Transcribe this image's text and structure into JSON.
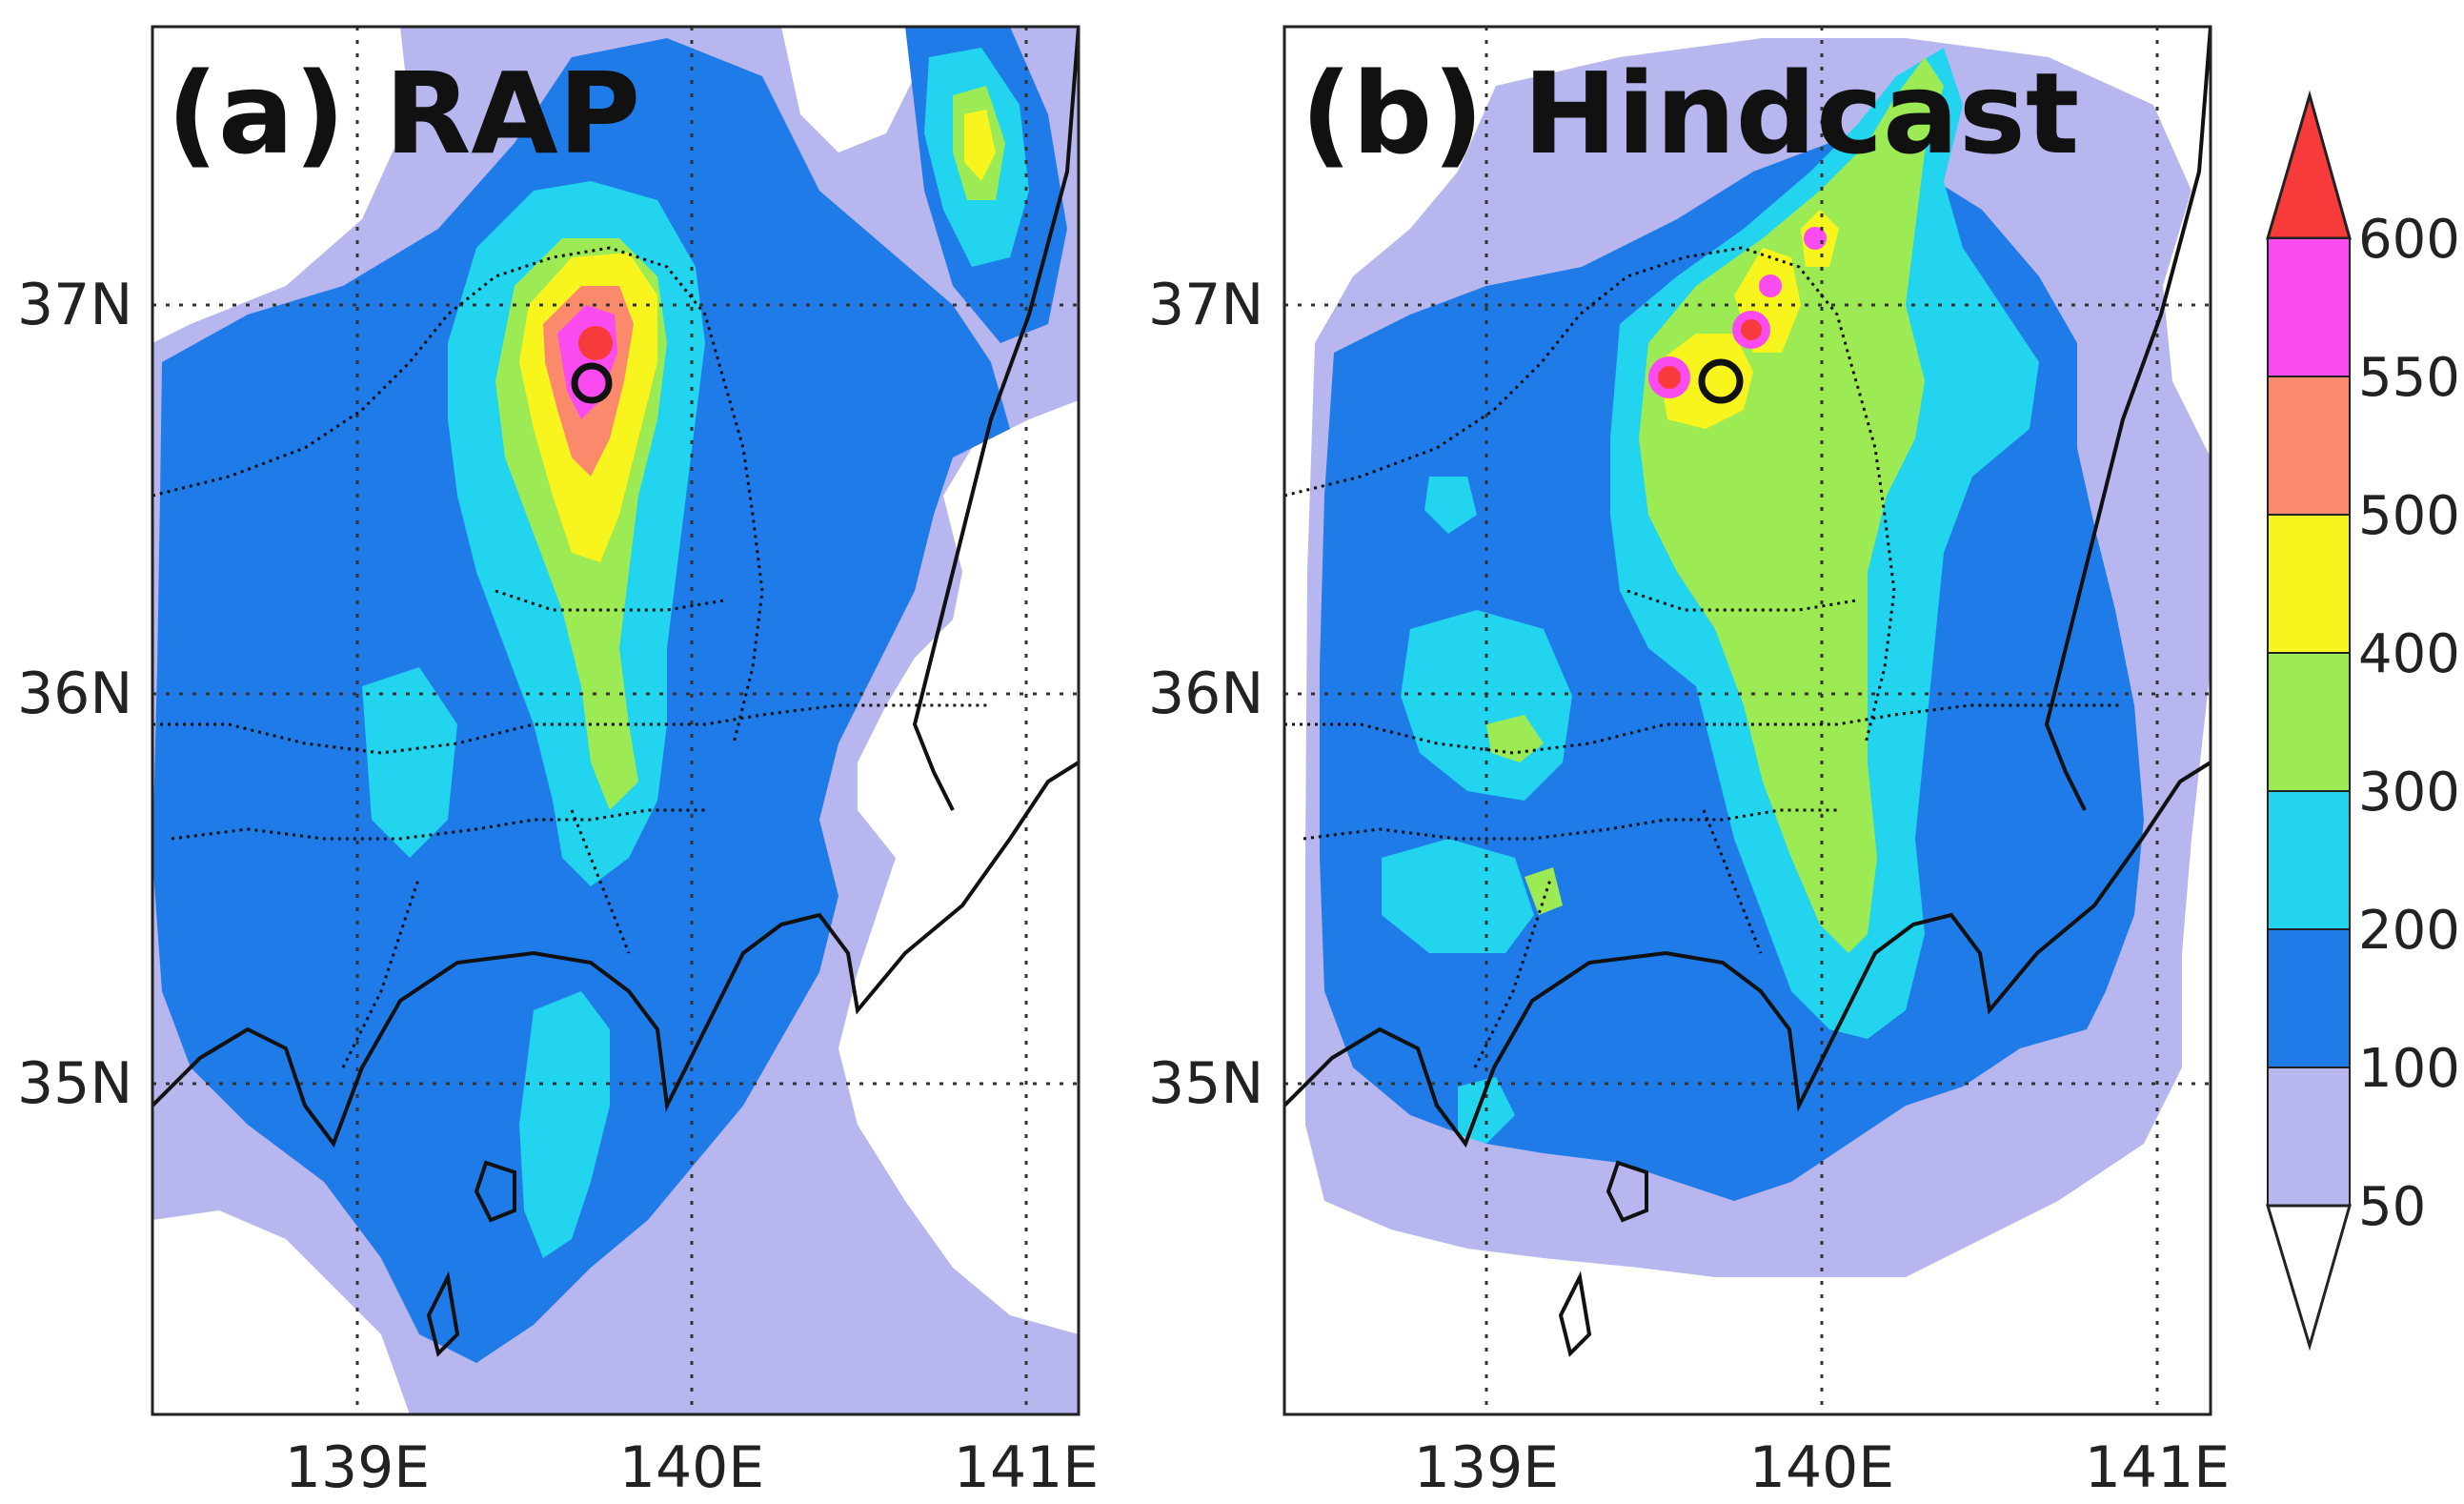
{
  "colors": {
    "c50": "#b8b6ee",
    "c100": "#1f7be8",
    "c200": "#22d4ee",
    "c300": "#9ceb55",
    "c400": "#f8f51e",
    "c500": "#fb8a6c",
    "c550": "#fa4bf0",
    "c600": "#f73b3b",
    "background": "#ffffff",
    "border": "#222222"
  },
  "panels": [
    {
      "label": "(a) RAP",
      "x_ticks": [
        "139E",
        "140E",
        "141E"
      ],
      "y_ticks": [
        "37N",
        "36N",
        "35N"
      ]
    },
    {
      "label": "(b) Hindcast",
      "x_ticks": [
        "139E",
        "140E",
        "141E"
      ],
      "y_ticks": [
        "37N",
        "36N",
        "35N"
      ]
    }
  ],
  "colorbar": {
    "levels": [
      "50",
      "100",
      "200",
      "300",
      "400",
      "500",
      "550",
      "600"
    ]
  },
  "map_data": {
    "lon_range": [
      138.4,
      141.15
    ],
    "lat_range": [
      34.15,
      37.7
    ],
    "grid_lons": [
      139,
      140,
      141
    ],
    "grid_lats": [
      35,
      36,
      37
    ],
    "marker": {
      "lon": 139.7,
      "lat": 36.8,
      "shape": "open-circle"
    }
  }
}
